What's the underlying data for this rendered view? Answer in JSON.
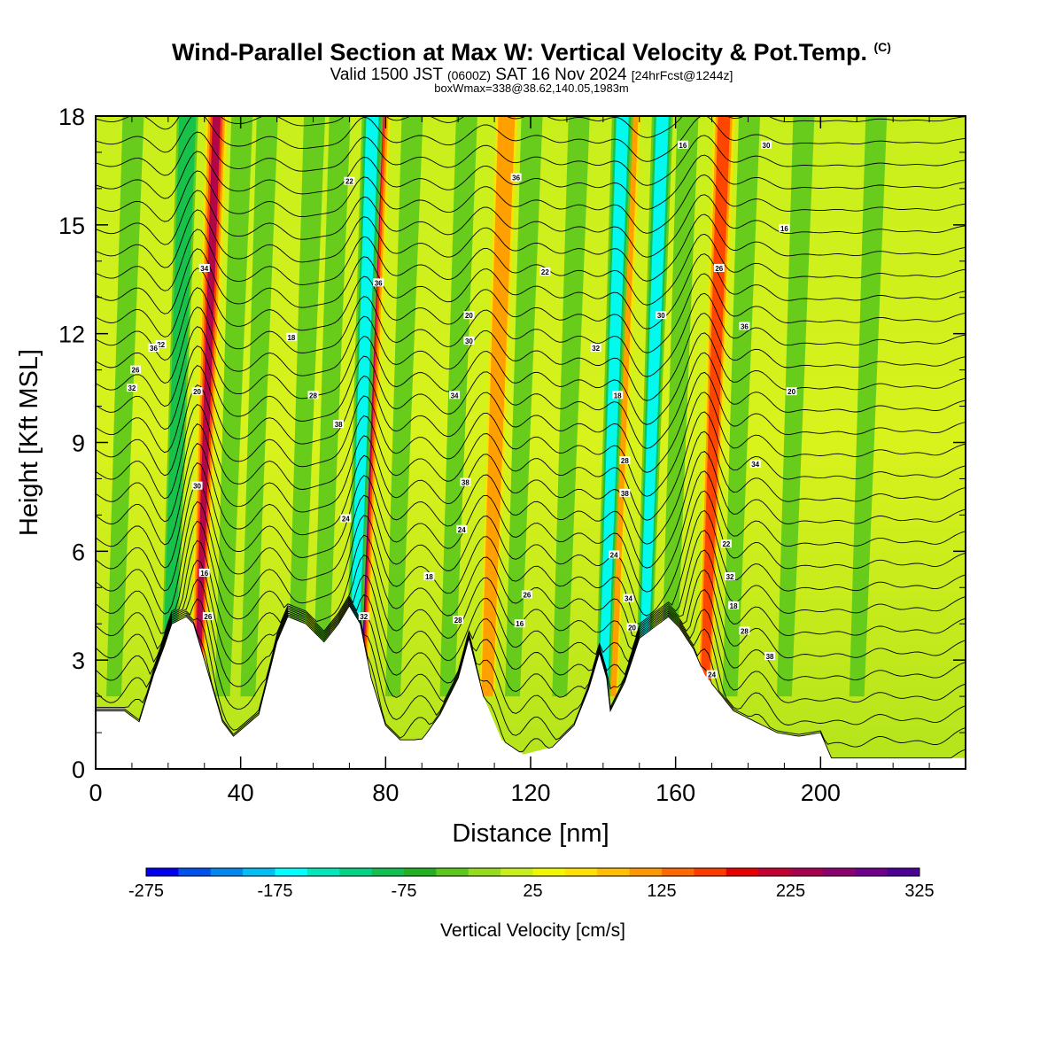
{
  "title": {
    "main": "Wind-Parallel Section at Max W: Vertical Velocity & Pot.Temp.",
    "copyright": "(C)",
    "valid_a": "Valid 1500 JST",
    "valid_utc": "(0600Z)",
    "valid_b": "SAT 16 Nov 2024",
    "forecast": "[24hrFcst@1244z]",
    "box_info": "boxWmax=338@38.62,140.05,1983m"
  },
  "chart_data": {
    "type": "heatmap",
    "xlabel": "Distance [nm]",
    "ylabel": "Height [Kft MSL]",
    "xlim": [
      0,
      240
    ],
    "ylim": [
      0,
      18
    ],
    "x_ticks": [
      0,
      40,
      80,
      120,
      160,
      200
    ],
    "y_ticks": [
      0,
      3,
      6,
      9,
      12,
      15,
      18
    ],
    "colorbar": {
      "title": "Vertical Velocity [cm/s]",
      "min": -275,
      "max": 325,
      "step": 25,
      "tick_labels": [
        "-275",
        "-175",
        "-75",
        "25",
        "125",
        "225",
        "325"
      ],
      "colors": [
        "#0000f0",
        "#0050f0",
        "#0088f0",
        "#00bff5",
        "#00ffff",
        "#00e8b8",
        "#00d484",
        "#10c050",
        "#22b022",
        "#5cc81c",
        "#96dc1c",
        "#c8ef1c",
        "#f0f800",
        "#ffe000",
        "#ffbe00",
        "#ff9800",
        "#ff6a00",
        "#ff3c00",
        "#e80000",
        "#c40030",
        "#a80050",
        "#8c0070",
        "#70008c",
        "#4c0096"
      ]
    },
    "terrain_kft": [
      [
        0,
        1.6
      ],
      [
        8,
        1.6
      ],
      [
        12,
        1.3
      ],
      [
        16,
        2.6
      ],
      [
        19,
        3.4
      ],
      [
        21,
        4
      ],
      [
        25,
        4.2
      ],
      [
        27,
        4
      ],
      [
        30,
        3
      ],
      [
        35,
        1.3
      ],
      [
        38,
        0.9
      ],
      [
        45,
        1.5
      ],
      [
        50,
        3.5
      ],
      [
        53,
        4.2
      ],
      [
        58,
        4
      ],
      [
        63,
        3.5
      ],
      [
        67,
        4
      ],
      [
        70,
        4.5
      ],
      [
        73,
        4
      ],
      [
        76,
        2.5
      ],
      [
        80,
        1.2
      ],
      [
        84,
        0.8
      ],
      [
        90,
        0.8
      ],
      [
        95,
        1.5
      ],
      [
        100,
        2.5
      ],
      [
        103,
        3.6
      ],
      [
        107,
        2
      ],
      [
        112,
        0.8
      ],
      [
        118,
        0.4
      ],
      [
        126,
        0.6
      ],
      [
        132,
        1.2
      ],
      [
        136,
        2.2
      ],
      [
        139,
        3.2
      ],
      [
        141,
        2.5
      ],
      [
        142,
        1.6
      ],
      [
        146,
        2.4
      ],
      [
        150,
        3.6
      ],
      [
        154,
        3.9
      ],
      [
        158,
        4.2
      ],
      [
        161,
        3.9
      ],
      [
        165,
        3.3
      ],
      [
        168,
        2.6
      ],
      [
        172,
        2.1
      ],
      [
        176,
        1.6
      ],
      [
        182,
        1.3
      ],
      [
        188,
        1.0
      ],
      [
        194,
        0.9
      ],
      [
        200,
        1.0
      ],
      [
        203,
        0.3
      ],
      [
        240,
        0.3
      ]
    ],
    "updraft_cores": [
      {
        "x": 28,
        "w_cm_s": 240
      },
      {
        "x": 73,
        "w_cm_s": 338
      },
      {
        "x": 108,
        "w_cm_s": 120
      },
      {
        "x": 142,
        "w_cm_s": 130
      },
      {
        "x": 168,
        "w_cm_s": 200
      }
    ],
    "downdraft_cores": [
      {
        "x": 71,
        "w_cm_s": -200
      },
      {
        "x": 140,
        "w_cm_s": -160
      },
      {
        "x": 151,
        "w_cm_s": -180
      },
      {
        "x": 20,
        "w_cm_s": -150
      }
    ],
    "theta_contour_labels": [
      "16",
      "18",
      "20",
      "22",
      "24",
      "26",
      "28",
      "30",
      "32",
      "34",
      "36",
      "38"
    ]
  }
}
